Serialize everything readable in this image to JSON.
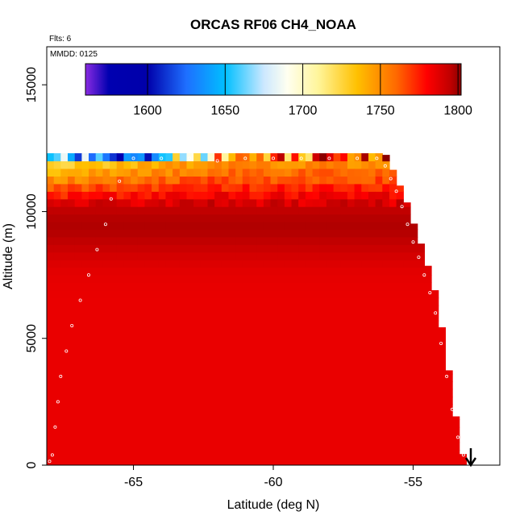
{
  "chart_data": {
    "type": "heatmap",
    "title": "ORCAS RF06 CH4_NOAA",
    "flts_label": "Flts: 6",
    "mmdd_label": "MMDD: 0125",
    "xlabel": "Latitude (deg N)",
    "ylabel": "Altitude (m)",
    "xlim": [
      -68.1,
      -51.9
    ],
    "ylim": [
      0,
      16500
    ],
    "x_ticks": [
      -65,
      -60,
      -55
    ],
    "x_tick_labels": [
      "-65",
      "-60",
      "-55"
    ],
    "y_ticks": [
      0,
      5000,
      10000,
      15000
    ],
    "y_tick_labels": [
      "0",
      "5000",
      "10000",
      "15000"
    ],
    "colorbar": {
      "range": [
        1560,
        1802
      ],
      "ticks": [
        1600,
        1650,
        1700,
        1750,
        1800
      ],
      "tick_labels": [
        "1600",
        "1650",
        "1700",
        "1750",
        "1800"
      ],
      "stops": [
        {
          "v": 1560,
          "c": "#8a2be2"
        },
        {
          "v": 1575,
          "c": "#0000b0"
        },
        {
          "v": 1600,
          "c": "#0000aa"
        },
        {
          "v": 1625,
          "c": "#1e6fff"
        },
        {
          "v": 1650,
          "c": "#00bfff"
        },
        {
          "v": 1675,
          "c": "#cce8ff"
        },
        {
          "v": 1690,
          "c": "#fffff0"
        },
        {
          "v": 1710,
          "c": "#fff59a"
        },
        {
          "v": 1735,
          "c": "#ffc000"
        },
        {
          "v": 1760,
          "c": "#ff6a00"
        },
        {
          "v": 1780,
          "c": "#ff0000"
        },
        {
          "v": 1795,
          "c": "#c00000"
        },
        {
          "v": 1802,
          "c": "#8b0000"
        }
      ]
    },
    "field": {
      "lat_range": [
        -68.1,
        -53.1
      ],
      "alt_range": [
        0,
        12300
      ],
      "boundary_lat": [
        -68.1,
        -56.0,
        -55.8,
        -55.6,
        -55.4,
        -55.2,
        -55.0,
        -54.8,
        -54.6,
        -54.4,
        -54.2,
        -54.0,
        -53.8,
        -53.6,
        -53.4,
        -53.2,
        -53.1
      ],
      "boundary_alt": [
        12300,
        12300,
        11800,
        11400,
        10800,
        10300,
        9600,
        9000,
        8300,
        7600,
        6800,
        5600,
        4300,
        2800,
        1400,
        300,
        0
      ],
      "upper_layer_values": [
        1640,
        1610,
        1690,
        1740,
        1760,
        1780
      ],
      "mid_layer_value": 1795,
      "lower_layer_value": 1785
    },
    "flight_track": {
      "lat": [
        -68.0,
        -67.9,
        -67.8,
        -67.7,
        -67.6,
        -67.4,
        -67.2,
        -66.9,
        -66.6,
        -66.3,
        -66.0,
        -65.8,
        -65.5,
        -65.0,
        -64.0,
        -63.0,
        -62.0,
        -61.0,
        -60.0,
        -59.0,
        -58.0,
        -57.0,
        -56.3,
        -56.0,
        -55.8,
        -55.6,
        -55.4,
        -55.2,
        -55.0,
        -54.8,
        -54.6,
        -54.4,
        -54.2,
        -54.0,
        -53.8,
        -53.6,
        -53.4,
        -53.2
      ],
      "alt": [
        150,
        400,
        1500,
        2500,
        3500,
        4500,
        5500,
        6500,
        7500,
        8500,
        9500,
        10500,
        11200,
        12100,
        12100,
        12100,
        12000,
        12100,
        12100,
        12100,
        12100,
        12100,
        12100,
        11800,
        11300,
        10800,
        10200,
        9500,
        8800,
        8200,
        7500,
        6800,
        6000,
        4800,
        3500,
        2200,
        1100,
        400
      ]
    }
  }
}
